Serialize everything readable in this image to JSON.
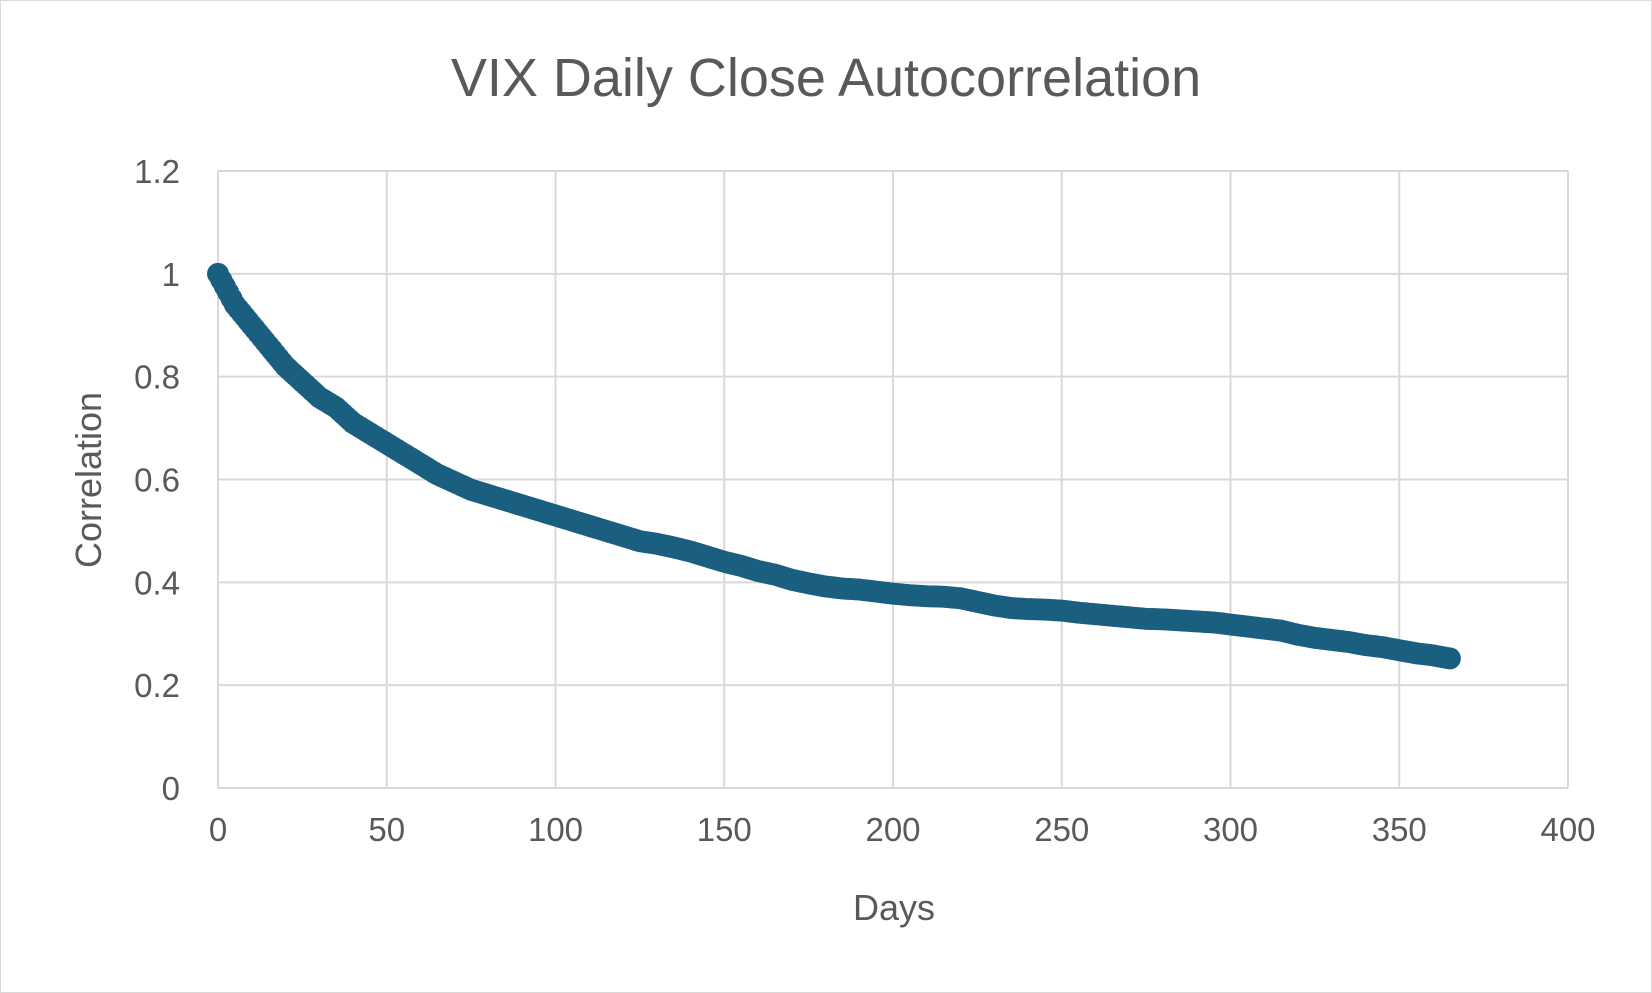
{
  "chart_data": {
    "type": "scatter",
    "title": "VIX Daily Close Autocorrelation",
    "xlabel": "Days",
    "ylabel": "Correlation",
    "xlim": [
      0,
      400
    ],
    "ylim": [
      0,
      1.2
    ],
    "x_ticks": [
      "0",
      "50",
      "100",
      "150",
      "200",
      "250",
      "300",
      "350",
      "400"
    ],
    "y_ticks": [
      "0",
      "0.2",
      "0.4",
      "0.6",
      "0.8",
      "1",
      "1.2"
    ],
    "grid": true,
    "legend": "none",
    "marker_color": "#1b5f80",
    "series": [
      {
        "x": [
          0,
          5,
          10,
          15,
          20,
          25,
          30,
          35,
          40,
          45,
          50,
          55,
          60,
          65,
          70,
          75,
          80,
          85,
          90,
          95,
          100,
          105,
          110,
          115,
          120,
          125,
          130,
          135,
          140,
          145,
          150,
          155,
          160,
          165,
          170,
          175,
          180,
          185,
          190,
          195,
          200,
          205,
          210,
          215,
          220,
          225,
          230,
          235,
          240,
          245,
          250,
          255,
          260,
          265,
          270,
          275,
          280,
          285,
          290,
          295,
          300,
          305,
          310,
          315,
          320,
          325,
          330,
          335,
          340,
          345,
          350,
          355,
          360,
          365
        ],
        "y": [
          1.0,
          0.94,
          0.9,
          0.86,
          0.82,
          0.79,
          0.76,
          0.74,
          0.71,
          0.69,
          0.67,
          0.65,
          0.63,
          0.61,
          0.595,
          0.58,
          0.57,
          0.56,
          0.55,
          0.54,
          0.53,
          0.52,
          0.51,
          0.5,
          0.49,
          0.48,
          0.475,
          0.468,
          0.46,
          0.45,
          0.44,
          0.432,
          0.422,
          0.415,
          0.405,
          0.398,
          0.392,
          0.388,
          0.386,
          0.382,
          0.378,
          0.375,
          0.373,
          0.372,
          0.369,
          0.362,
          0.355,
          0.35,
          0.348,
          0.347,
          0.345,
          0.341,
          0.338,
          0.335,
          0.332,
          0.329,
          0.328,
          0.326,
          0.324,
          0.322,
          0.318,
          0.314,
          0.31,
          0.306,
          0.298,
          0.292,
          0.288,
          0.284,
          0.278,
          0.274,
          0.268,
          0.262,
          0.258,
          0.252
        ]
      }
    ]
  }
}
